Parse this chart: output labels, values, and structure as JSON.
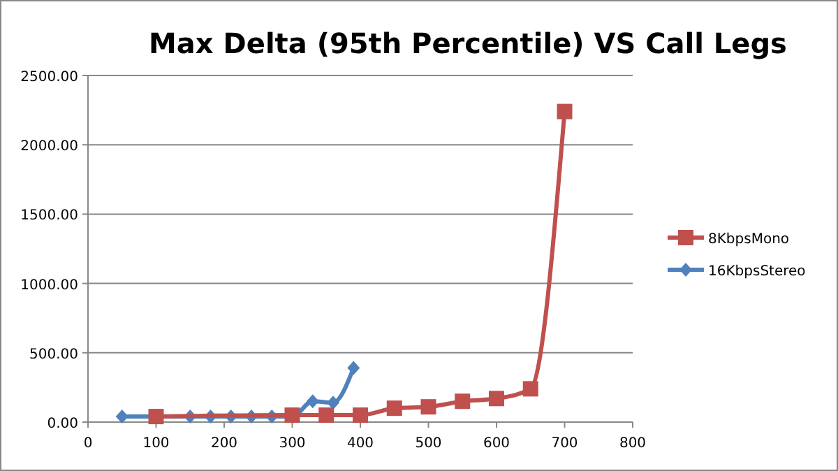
{
  "chart_data": {
    "type": "line",
    "title": "Max Delta (95th Percentile) VS Call Legs",
    "series": [
      {
        "name": "8KbpsMono",
        "color": "#c0504d",
        "marker": "square",
        "x": [
          100,
          300,
          350,
          400,
          450,
          500,
          550,
          600,
          650,
          700
        ],
        "values": [
          40,
          50,
          50,
          50,
          100,
          110,
          150,
          170,
          240,
          2240
        ]
      },
      {
        "name": "16KbpsStereo",
        "color": "#4f81bd",
        "marker": "diamond",
        "x": [
          50,
          100,
          150,
          180,
          210,
          240,
          270,
          300,
          330,
          360,
          390
        ],
        "values": [
          40,
          40,
          40,
          40,
          40,
          40,
          40,
          40,
          150,
          140,
          390
        ]
      }
    ],
    "xlim": [
      0,
      800
    ],
    "xticks": [
      0,
      100,
      200,
      300,
      400,
      500,
      600,
      700,
      800
    ],
    "ylim": [
      0,
      2500
    ],
    "yticks": [
      {
        "value": 0,
        "label": "0.00"
      },
      {
        "value": 500,
        "label": "500.00"
      },
      {
        "value": 1000,
        "label": "1000.00"
      },
      {
        "value": 1500,
        "label": "1500.00"
      },
      {
        "value": 2000,
        "label": "2000.00"
      },
      {
        "value": 2500,
        "label": "2500.00"
      }
    ],
    "grid": "y",
    "legend": "right"
  }
}
